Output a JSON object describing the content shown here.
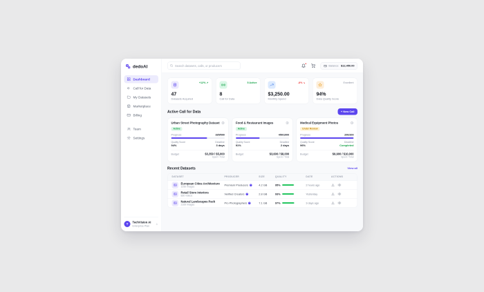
{
  "app": {
    "name": "dedoAI",
    "accent_color": "#5b45ee"
  },
  "sidebar": {
    "items": [
      {
        "label": "Dashboard"
      },
      {
        "label": "Call for Data"
      },
      {
        "label": "My Datasets"
      },
      {
        "label": "Marketplace"
      },
      {
        "label": "Billing"
      },
      {
        "label": "Team"
      },
      {
        "label": "Settings"
      }
    ],
    "user": {
      "initial": "T",
      "name": "TechVision AI",
      "plan": "Enterprise Plan"
    }
  },
  "header": {
    "search_placeholder": "Search datasets, calls, or producers",
    "balance_label": "Balance:",
    "balance_value": "$12,450.00"
  },
  "stats": [
    {
      "icon": "database-icon",
      "badge": "+12% ↗",
      "value": "47",
      "label": "Datasets Acquired"
    },
    {
      "icon": "broadcast-icon",
      "badge": "5 Active",
      "value": "8",
      "label": "Call for Data"
    },
    {
      "icon": "trend-up-icon",
      "badge": "-8% ↘",
      "value": "$3,250.00",
      "label": "Monthly Spend"
    },
    {
      "icon": "star-icon",
      "badge": "Excellent",
      "value": "94%",
      "label": "Data Quality Score"
    }
  ],
  "active_calls": {
    "title": "Active Call for Data",
    "new_call_label": "+ New Call",
    "progress_label": "Progress",
    "quality_label": "Quality Score",
    "deadline_label": "Deadline",
    "budget_label": "Budget",
    "budget_sub": "Spent / Total",
    "cards": [
      {
        "title": "Urban Street Photography Dataset",
        "status": "Active",
        "progress_value": "335/500",
        "progress_pct": 67,
        "quality_value": "94%",
        "deadline_value": "3 days",
        "budget_value": "$3,350 / $5,000"
      },
      {
        "title": "Food & Restaurant Images",
        "status": "Active",
        "progress_value": "450/1000",
        "progress_pct": 45,
        "quality_value": "91%",
        "deadline_value": "2 days",
        "budget_value": "$3,600 / $8,000"
      },
      {
        "title": "Medical Equipment Photos",
        "status": "Under Review",
        "progress_value": "200/200",
        "progress_pct": 100,
        "quality_value": "96%",
        "deadline_value": "Completed",
        "budget_value": "$9,900 / $10,000"
      }
    ]
  },
  "recent": {
    "title": "Recent Datasets",
    "view_all": "View all",
    "columns": [
      "DATASET",
      "PRODUCER",
      "SIZE",
      "QUALITY",
      "DATE",
      "ACTIONS"
    ],
    "rows": [
      {
        "name": "European Cities Architecture",
        "meta": "1250 images",
        "producer": "Premium Producers",
        "verified": "✓",
        "size": "4.2 GB",
        "quality": "95%",
        "quality_pct": 95,
        "date": "2 hours ago"
      },
      {
        "name": "Retail Store Interiors",
        "meta": "830 videos",
        "producer": "Verified Creators",
        "verified": "✓",
        "size": "2.8 GB",
        "quality": "93%",
        "quality_pct": 93,
        "date": "Yesterday"
      },
      {
        "name": "Natural Landscapes Pack",
        "meta": "2100 images",
        "producer": "Pro Photographers",
        "verified": "✓",
        "size": "7.1 GB",
        "quality": "97%",
        "quality_pct": 97,
        "date": "3 days ago"
      }
    ]
  }
}
